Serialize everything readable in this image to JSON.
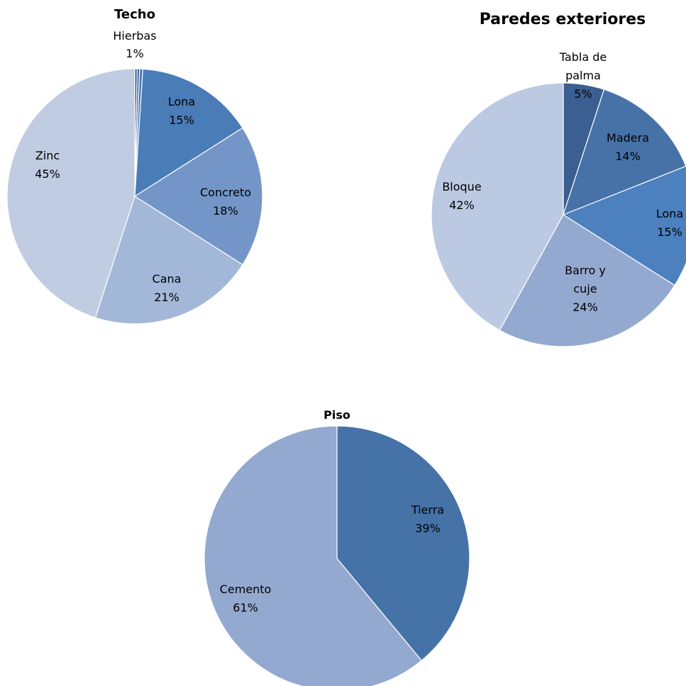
{
  "chart_data": [
    {
      "type": "pie",
      "title": "Techo",
      "start_angle_deg": 0,
      "slices": [
        {
          "name": "",
          "value": 0.3,
          "label": "",
          "color": "#2e5487"
        },
        {
          "name": "",
          "value": 0.3,
          "label": "",
          "color": "#3a6299"
        },
        {
          "name": "Hierbas",
          "value": 0.4,
          "label": "1%",
          "color": "#4a7ab3"
        },
        {
          "name": "Lona",
          "value": 15,
          "label": "15%",
          "color": "#4a7cb8"
        },
        {
          "name": "Concreto",
          "value": 18,
          "label": "18%",
          "color": "#7395c7"
        },
        {
          "name": "Cana",
          "value": 21,
          "label": "21%",
          "color": "#a3b7d8"
        },
        {
          "name": "Zinc",
          "value": 45,
          "label": "45%",
          "color": "#c0cce2"
        }
      ]
    },
    {
      "type": "pie",
      "title": "Paredes exteriores",
      "start_angle_deg": 0,
      "slices": [
        {
          "name": "Tabla de palma",
          "value": 5,
          "label": "5%",
          "color": "#3a5f90"
        },
        {
          "name": "Madera",
          "value": 14,
          "label": "14%",
          "color": "#4672a8"
        },
        {
          "name": "Lona",
          "value": 15,
          "label": "15%",
          "color": "#4d80bf"
        },
        {
          "name": "Barro y cuje",
          "value": 24,
          "label": "24%",
          "color": "#94a9d0"
        },
        {
          "name": "Bloque",
          "value": 42,
          "label": "42%",
          "color": "#bcc9e2"
        }
      ]
    },
    {
      "type": "pie",
      "title": "Piso",
      "start_angle_deg": 0,
      "slices": [
        {
          "name": "Tierra",
          "value": 39,
          "label": "39%",
          "color": "#4573a8"
        },
        {
          "name": "Cemento",
          "value": 61,
          "label": "61%",
          "color": "#94a9d0"
        }
      ]
    }
  ]
}
